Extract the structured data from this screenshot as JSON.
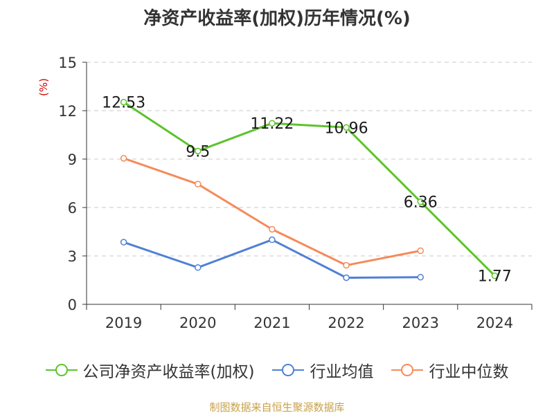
{
  "title": "净资产收益率(加权)历年情况(%)",
  "source": "制图数据来自恒生聚源数据库",
  "chart_data": {
    "type": "line",
    "title": "净资产收益率(加权)历年情况(%)",
    "categories": [
      "2019",
      "2020",
      "2021",
      "2022",
      "2023",
      "2024"
    ],
    "ylabel": "(%)",
    "ylim": [
      0,
      15
    ],
    "yticks": [
      0,
      3,
      6,
      9,
      12,
      15
    ],
    "grid": true,
    "legend_position": "bottom",
    "series": [
      {
        "name": "公司净资产收益率(加权)",
        "color": "#5cc32b",
        "values": [
          12.53,
          9.5,
          11.22,
          10.96,
          6.36,
          1.77
        ],
        "labels": [
          "12.53",
          "9.5",
          "11.22",
          "10.96",
          "6.36",
          "1.77"
        ]
      },
      {
        "name": "行业均值",
        "color": "#4f80d6",
        "values": [
          3.85,
          2.28,
          4.0,
          1.65,
          1.68,
          null
        ]
      },
      {
        "name": "行业中位数",
        "color": "#f68a5a",
        "values": [
          9.05,
          7.45,
          4.65,
          2.42,
          3.32,
          null
        ]
      }
    ]
  }
}
